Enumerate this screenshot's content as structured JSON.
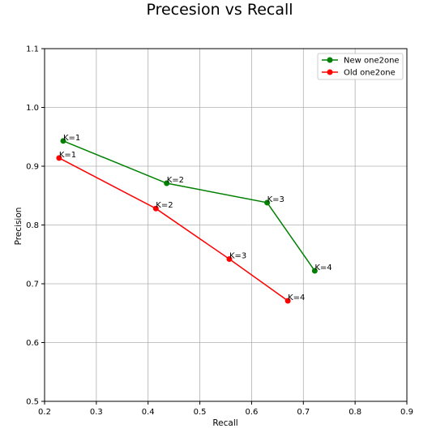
{
  "chart_data": {
    "type": "line",
    "title": "Precesion vs Recall",
    "xlabel": "Recall",
    "ylabel": "Precision",
    "xlim": [
      0.2,
      0.9
    ],
    "ylim": [
      0.5,
      1.1
    ],
    "xticks": [
      "0.2",
      "0.3",
      "0.4",
      "0.5",
      "0.6",
      "0.7",
      "0.8",
      "0.9"
    ],
    "yticks": [
      "0.5",
      "0.6",
      "0.7",
      "0.8",
      "0.9",
      "1.0",
      "1.1"
    ],
    "grid": true,
    "legend_position": "top-right",
    "series": [
      {
        "name": "New one2one",
        "color": "#008000",
        "x": [
          0.236,
          0.436,
          0.63,
          0.722
        ],
        "y": [
          0.943,
          0.871,
          0.838,
          0.722
        ],
        "point_labels": [
          "K=1",
          "K=2",
          "K=3",
          "K=4"
        ]
      },
      {
        "name": "Old one2one",
        "color": "#ff0000",
        "x": [
          0.228,
          0.415,
          0.557,
          0.67
        ],
        "y": [
          0.914,
          0.828,
          0.742,
          0.671
        ],
        "point_labels": [
          "K=1",
          "K=2",
          "K=3",
          "K=4"
        ]
      }
    ]
  }
}
